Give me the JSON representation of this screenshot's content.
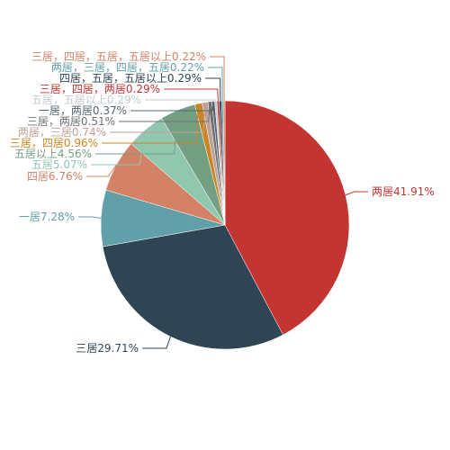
{
  "chart_data": {
    "type": "pie",
    "categories": [
      "两居",
      "三居",
      "一居",
      "四居",
      "五居",
      "五居以上",
      "三居，四居",
      "两居，三居",
      "三居，两居",
      "一居，两居",
      "五居，五居以上",
      "三居，四居，两居",
      "四居，五居，五居以上",
      "两居，三居，四居，五居",
      "三居，四居，五居，五居以上"
    ],
    "values": [
      41.91,
      29.71,
      7.28,
      6.76,
      5.07,
      4.56,
      0.96,
      0.74,
      0.51,
      0.37,
      0.29,
      0.29,
      0.29,
      0.22,
      0.22
    ],
    "value_labels": [
      "41.91%",
      "29.71%",
      "7.28%",
      "6.76%",
      "5.07%",
      "4.56%",
      "0.96%",
      "0.74%",
      "0.51%",
      "0.37%",
      "0.29%",
      "0.29%",
      "0.29%",
      "0.22%",
      "0.22%"
    ],
    "colors": [
      "#c23531",
      "#2f4554",
      "#61a0a8",
      "#d48265",
      "#91c7ae",
      "#749f83",
      "#ca8622",
      "#bda29a",
      "#6e7074",
      "#546570",
      "#c4ccd3",
      "#c23531",
      "#2f4554",
      "#61a0a8",
      "#d48265"
    ]
  }
}
